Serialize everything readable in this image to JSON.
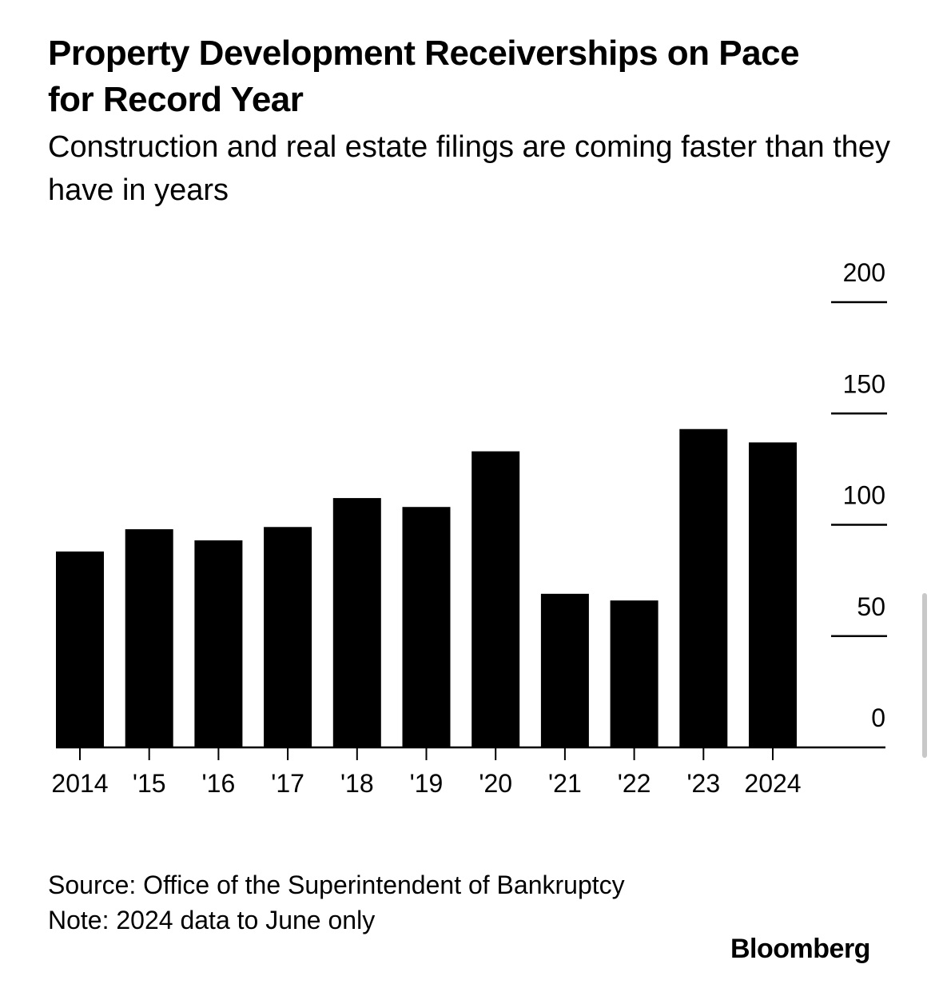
{
  "title": "Property Development Receiverships on Pace for Record Year",
  "subtitle": "Construction and real estate filings are coming faster than they have in years",
  "footnote": {
    "source": "Source: Office of the Superintendent of Bankruptcy",
    "note": "Note: 2024 data to June only"
  },
  "brand": "Bloomberg",
  "chart_data": {
    "type": "bar",
    "categories": [
      "2014",
      "'15",
      "'16",
      "'17",
      "'18",
      "'19",
      "'20",
      "'21",
      "'22",
      "'23",
      "2024"
    ],
    "values": [
      88,
      98,
      93,
      99,
      112,
      108,
      133,
      69,
      66,
      143,
      137
    ],
    "ylim": [
      0,
      200
    ],
    "yticks": [
      0,
      50,
      100,
      150,
      200
    ],
    "y_axis_position": "right",
    "grid": false,
    "bar_color": "#000000",
    "title": "",
    "xlabel": "",
    "ylabel": ""
  }
}
